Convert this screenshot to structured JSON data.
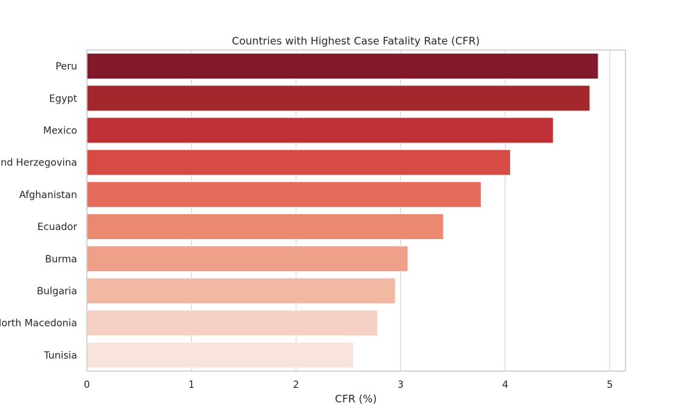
{
  "chart_data": {
    "type": "bar",
    "orientation": "horizontal",
    "title": "Countries with Highest Case Fatality Rate (CFR)",
    "xlabel": "CFR (%)",
    "ylabel": "",
    "xlim": [
      0,
      5.15
    ],
    "xticks": [
      0,
      1,
      2,
      3,
      4,
      5
    ],
    "grid": true,
    "categories": [
      "Peru",
      "Egypt",
      "Mexico",
      "Bosnia and Herzegovina",
      "Afghanistan",
      "Ecuador",
      "Burma",
      "Bulgaria",
      "North Macedonia",
      "Tunisia"
    ],
    "values": [
      4.89,
      4.81,
      4.46,
      4.05,
      3.77,
      3.41,
      3.07,
      2.95,
      2.78,
      2.55
    ],
    "colors": [
      "#82192a",
      "#a3282e",
      "#bd3137",
      "#d64b44",
      "#e56c5a",
      "#ea8870",
      "#eea088",
      "#f2b8a2",
      "#f6d1c3",
      "#f9e4dd"
    ]
  }
}
